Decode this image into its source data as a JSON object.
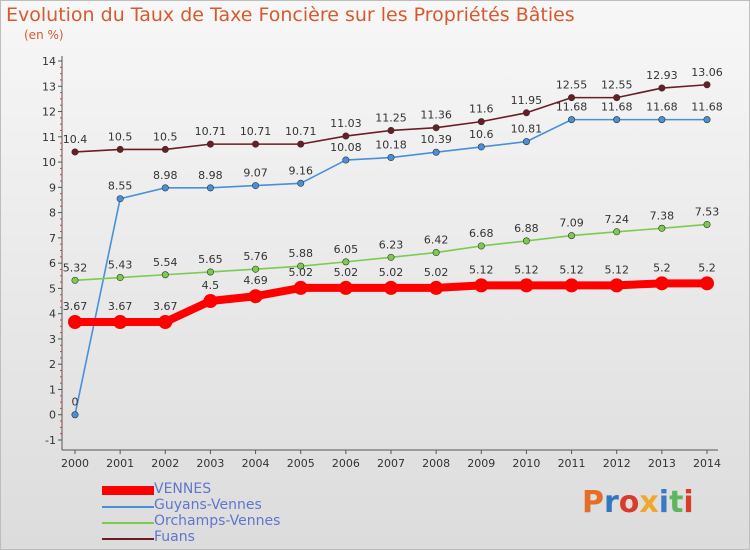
{
  "title": "Evolution du Taux de Taxe Foncière sur les Propriétés Bâties",
  "unit": "(en %)",
  "logo_text": "Proxiti",
  "logo_colors": [
    "#e26f25",
    "#2f77c0",
    "#d93b2c",
    "#f1a72b",
    "#3b79c6",
    "#5cb85c",
    "#d93b2c"
  ],
  "chart_data": {
    "type": "line",
    "title": "Evolution du Taux de Taxe Foncière sur les Propriétés Bâties",
    "ylabel": "(en %)",
    "xlabel": "",
    "x": [
      "2000",
      "2001",
      "2002",
      "2003",
      "2004",
      "2005",
      "2006",
      "2007",
      "2008",
      "2009",
      "2010",
      "2011",
      "2012",
      "2013",
      "2014"
    ],
    "ylim": [
      -1,
      14
    ],
    "yticks": [
      "-1",
      "0",
      "1",
      "2",
      "3",
      "4",
      "5",
      "6",
      "7",
      "8",
      "9",
      "10",
      "11",
      "12",
      "13",
      "14"
    ],
    "grid": false,
    "legend_position": "bottom-left",
    "series": [
      {
        "name": "VENNES",
        "color": "#ff0000",
        "thick": true,
        "values": [
          3.67,
          3.67,
          3.67,
          4.5,
          4.69,
          5.02,
          5.02,
          5.02,
          5.02,
          5.12,
          5.12,
          5.12,
          5.12,
          5.2,
          5.2
        ],
        "labels": [
          "3.67",
          "3.67",
          "3.67",
          "4.5",
          "4.69",
          "5.02",
          "5.02",
          "5.02",
          "5.02",
          "5.12",
          "5.12",
          "5.12",
          "5.12",
          "5.2",
          "5.2"
        ]
      },
      {
        "name": "Guyans-Vennes",
        "color": "#4a90d9",
        "thick": false,
        "values": [
          0,
          8.55,
          8.98,
          8.98,
          9.07,
          9.16,
          10.08,
          10.18,
          10.39,
          10.6,
          10.81,
          11.68,
          11.68,
          11.68,
          11.68
        ],
        "labels": [
          "0",
          "8.55",
          "8.98",
          "8.98",
          "9.07",
          "9.16",
          "10.08",
          "10.18",
          "10.39",
          "10.6",
          "10.81",
          "11.68",
          "11.68",
          "11.68",
          "11.68"
        ]
      },
      {
        "name": "Orchamps-Vennes",
        "color": "#7ccb4e",
        "thick": false,
        "values": [
          5.32,
          5.43,
          5.54,
          5.65,
          5.76,
          5.88,
          6.05,
          6.23,
          6.42,
          6.68,
          6.88,
          7.09,
          7.24,
          7.38,
          7.53
        ],
        "labels": [
          "5.32",
          "5.43",
          "5.54",
          "5.65",
          "5.76",
          "5.88",
          "6.05",
          "6.23",
          "6.42",
          "6.68",
          "6.88",
          "7.09",
          "7.24",
          "7.38",
          "7.53"
        ]
      },
      {
        "name": "Fuans",
        "color": "#6b1d24",
        "thick": false,
        "values": [
          10.4,
          10.5,
          10.5,
          10.71,
          10.71,
          10.71,
          11.03,
          11.25,
          11.36,
          11.6,
          11.95,
          12.55,
          12.55,
          12.93,
          13.06
        ],
        "labels": [
          "10.4",
          "10.5",
          "10.5",
          "10.71",
          "10.71",
          "10.71",
          "11.03",
          "11.25",
          "11.36",
          "11.6",
          "11.95",
          "12.55",
          "12.55",
          "12.93",
          "13.06"
        ]
      }
    ]
  }
}
